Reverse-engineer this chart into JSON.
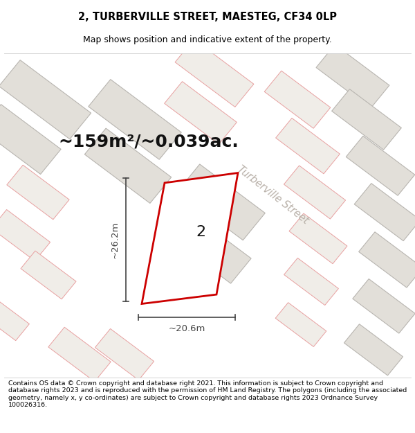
{
  "title_line1": "2, TURBERVILLE STREET, MAESTEG, CF34 0LP",
  "title_line2": "Map shows position and indicative extent of the property.",
  "area_text": "~159m²/~0.039ac.",
  "dim_vertical": "~26.2m",
  "dim_horizontal": "~20.6m",
  "street_label": "Turberville Street",
  "property_number": "2",
  "footer_text": "Contains OS data © Crown copyright and database right 2021. This information is subject to Crown copyright and database rights 2023 and is reproduced with the permission of HM Land Registry. The polygons (including the associated geometry, namely x, y co-ordinates) are subject to Crown copyright and database rights 2023 Ordnance Survey 100026316.",
  "bg_color": "#ffffff",
  "map_bg": "#f7f6f4",
  "building_fill": "#e2dfd9",
  "building_edge_gray": "#b8b5b0",
  "building_edge_pink": "#e8a0a0",
  "property_edge": "#cc0000",
  "property_fill": "#ffffff",
  "dim_color": "#444444",
  "street_color": "#b8b0a8",
  "title_fontsize": 10.5,
  "subtitle_fontsize": 9.0,
  "area_fontsize": 18,
  "dim_fontsize": 9.5,
  "street_fontsize": 10.5,
  "num_fontsize": 16,
  "footer_fontsize": 6.8
}
